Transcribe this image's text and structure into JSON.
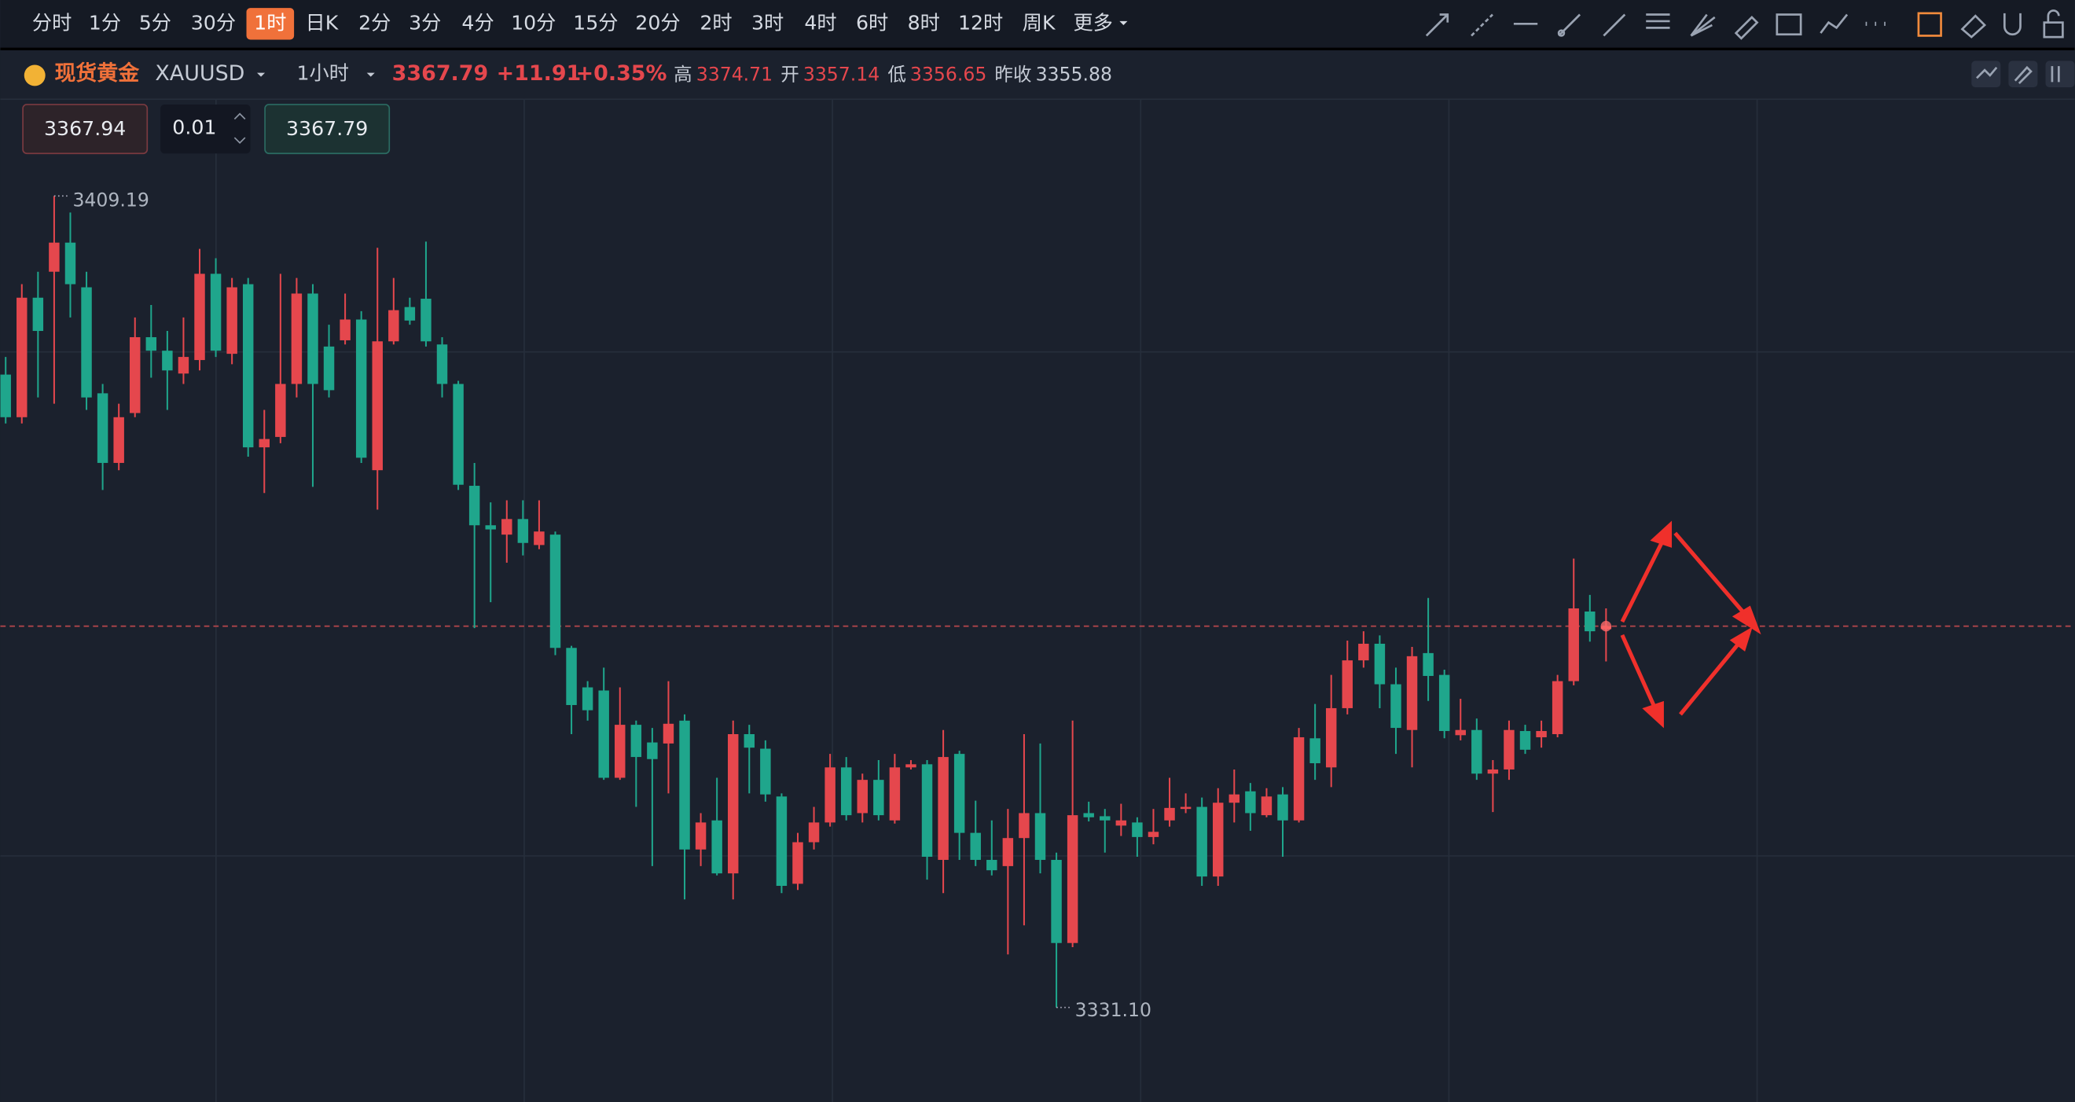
{
  "toolbar": {
    "intervals": [
      "分时",
      "1分",
      "5分",
      "30分",
      "1时",
      "日K",
      "2分",
      "3分",
      "4分",
      "10分",
      "15分",
      "20分",
      "2时",
      "3时",
      "4时",
      "6时",
      "8时",
      "12时",
      "周K",
      "更多"
    ],
    "active": "1时"
  },
  "header": {
    "name": "现货黄金",
    "symbol": "XAUUSD",
    "period": "1小时",
    "price": "3367.79",
    "change": "+11.91",
    "change_pct": "+0.35%",
    "stats": [
      {
        "label": "高",
        "value": "3374.71"
      },
      {
        "label": "开",
        "value": "3357.14"
      },
      {
        "label": "低",
        "value": "3356.65"
      },
      {
        "label": "昨收",
        "value": "3355.88"
      }
    ]
  },
  "order": {
    "sell": "3367.94",
    "lot": "0.01",
    "buy": "3367.79"
  },
  "chart_data": {
    "type": "candlestick",
    "up_color": "#e5474d",
    "down_color": "#1fa68c",
    "ylim": [
      3322.0,
      3418.5
    ],
    "annotations": [
      "3409.19",
      "3331.10"
    ],
    "open": [
      3392.0,
      3387.9,
      3399.4,
      3401.9,
      3404.7,
      3400.4,
      3390.2,
      3383.5,
      3388.3,
      3395.6,
      3394.3,
      3392.1,
      3393.4,
      3401.7,
      3394.0,
      3400.7,
      3385.0,
      3386.0,
      3391.1,
      3399.8,
      3394.7,
      3395.3,
      3397.3,
      3382.8,
      3395.2,
      3398.5,
      3399.3,
      3394.9,
      3391.1,
      3381.3,
      3377.5,
      3376.6,
      3378.1,
      3375.6,
      3376.6,
      3365.7,
      3361.9,
      3361.6,
      3353.2,
      3358.3,
      3356.6,
      3356.5,
      3358.7,
      3346.3,
      3349.1,
      3344.0,
      3357.4,
      3356.0,
      3351.4,
      3343.0,
      3347.0,
      3348.9,
      3354.2,
      3349.8,
      3353.0,
      3349.1,
      3354.2,
      3354.5,
      3345.3,
      3355.5,
      3347.9,
      3345.3,
      3344.7,
      3347.4,
      3349.8,
      3345.3,
      3337.3,
      3349.8,
      3349.5,
      3348.6,
      3348.9,
      3347.5,
      3349.1,
      3350.2,
      3350.4,
      3343.7,
      3350.8,
      3351.9,
      3349.6,
      3351.6,
      3349.1,
      3357.0,
      3354.2,
      3359.9,
      3364.5,
      3366.1,
      3362.2,
      3357.8,
      3365.2,
      3363.1,
      3357.3,
      3357.8,
      3353.6,
      3354.0,
      3357.7,
      3357.1,
      3357.4,
      3362.5,
      3369.2,
      3367.5
    ],
    "high": [
      3393.7,
      3400.7,
      3401.9,
      3409.19,
      3407.6,
      3401.9,
      3391.1,
      3389.2,
      3397.5,
      3398.7,
      3396.2,
      3397.5,
      3404.1,
      3403.2,
      3401.3,
      3401.3,
      3388.6,
      3401.7,
      3401.3,
      3400.7,
      3396.8,
      3399.8,
      3398.1,
      3404.2,
      3401.3,
      3399.4,
      3404.8,
      3395.6,
      3391.4,
      3383.5,
      3379.7,
      3379.9,
      3379.9,
      3379.9,
      3376.9,
      3365.9,
      3362.5,
      3363.8,
      3361.9,
      3358.7,
      3358.0,
      3362.5,
      3359.3,
      3349.8,
      3353.2,
      3358.7,
      3358.3,
      3356.8,
      3351.7,
      3347.9,
      3350.4,
      3355.5,
      3355.2,
      3353.6,
      3354.9,
      3355.5,
      3354.9,
      3354.9,
      3357.8,
      3355.8,
      3351.0,
      3349.1,
      3350.2,
      3357.4,
      3356.5,
      3346.0,
      3358.7,
      3350.9,
      3350.2,
      3350.7,
      3349.4,
      3350.2,
      3353.2,
      3351.7,
      3351.3,
      3352.2,
      3354.0,
      3352.7,
      3352.2,
      3352.3,
      3358.0,
      3360.3,
      3363.1,
      3366.4,
      3367.3,
      3366.9,
      3363.8,
      3365.8,
      3370.5,
      3363.6,
      3360.8,
      3358.9,
      3354.9,
      3358.7,
      3358.3,
      3358.7,
      3363.1,
      3374.3,
      3370.8,
      3369.5
    ],
    "low": [
      3387.3,
      3387.3,
      3389.8,
      3389.2,
      3397.5,
      3388.6,
      3380.9,
      3382.8,
      3387.9,
      3391.7,
      3388.6,
      3391.1,
      3392.4,
      3393.7,
      3393.0,
      3384.1,
      3380.6,
      3385.4,
      3389.8,
      3381.2,
      3389.8,
      3394.9,
      3383.5,
      3379.0,
      3394.9,
      3396.8,
      3394.7,
      3389.8,
      3380.9,
      3367.6,
      3370.1,
      3373.9,
      3374.6,
      3375.2,
      3365.0,
      3357.4,
      3358.7,
      3353.0,
      3353.0,
      3350.4,
      3344.7,
      3351.7,
      3341.5,
      3344.7,
      3343.8,
      3341.5,
      3351.7,
      3350.9,
      3342.1,
      3342.4,
      3346.3,
      3348.5,
      3349.1,
      3348.9,
      3349.1,
      3348.8,
      3354.0,
      3343.4,
      3342.1,
      3345.3,
      3344.7,
      3343.8,
      3336.2,
      3339.0,
      3344.0,
      3331.1,
      3336.9,
      3349.0,
      3346.0,
      3347.6,
      3345.6,
      3346.8,
      3348.5,
      3349.8,
      3342.8,
      3342.8,
      3348.9,
      3348.1,
      3349.4,
      3345.6,
      3348.9,
      3353.0,
      3352.3,
      3359.3,
      3363.8,
      3359.9,
      3355.5,
      3354.2,
      3360.6,
      3357.0,
      3356.8,
      3353.0,
      3349.9,
      3353.0,
      3355.5,
      3356.1,
      3357.1,
      3362.1,
      3366.3,
      3364.4
    ],
    "close": [
      3387.9,
      3399.4,
      3396.2,
      3404.7,
      3400.7,
      3389.8,
      3383.5,
      3387.9,
      3395.6,
      3394.3,
      3392.4,
      3393.7,
      3401.7,
      3394.3,
      3400.4,
      3385.0,
      3385.8,
      3391.1,
      3399.8,
      3391.1,
      3390.5,
      3397.3,
      3384.0,
      3395.2,
      3398.2,
      3397.2,
      3395.2,
      3391.1,
      3381.4,
      3377.5,
      3377.1,
      3378.1,
      3375.8,
      3376.9,
      3365.7,
      3360.2,
      3359.7,
      3353.2,
      3358.3,
      3355.2,
      3355.0,
      3358.4,
      3346.3,
      3348.9,
      3344.0,
      3357.4,
      3356.1,
      3351.6,
      3342.8,
      3347.0,
      3348.9,
      3354.2,
      3349.6,
      3353.0,
      3349.6,
      3354.2,
      3354.5,
      3345.6,
      3355.2,
      3347.9,
      3345.3,
      3344.3,
      3347.4,
      3349.8,
      3345.3,
      3337.3,
      3349.6,
      3349.4,
      3349.1,
      3349.1,
      3347.5,
      3348.0,
      3350.3,
      3350.4,
      3343.7,
      3350.8,
      3351.6,
      3349.8,
      3351.4,
      3349.1,
      3357.1,
      3354.6,
      3359.9,
      3364.5,
      3366.1,
      3362.2,
      3358.0,
      3364.9,
      3363.0,
      3357.7,
      3357.8,
      3353.6,
      3354.0,
      3357.8,
      3355.9,
      3357.7,
      3362.5,
      3369.5,
      3367.3,
      3367.79
    ]
  }
}
